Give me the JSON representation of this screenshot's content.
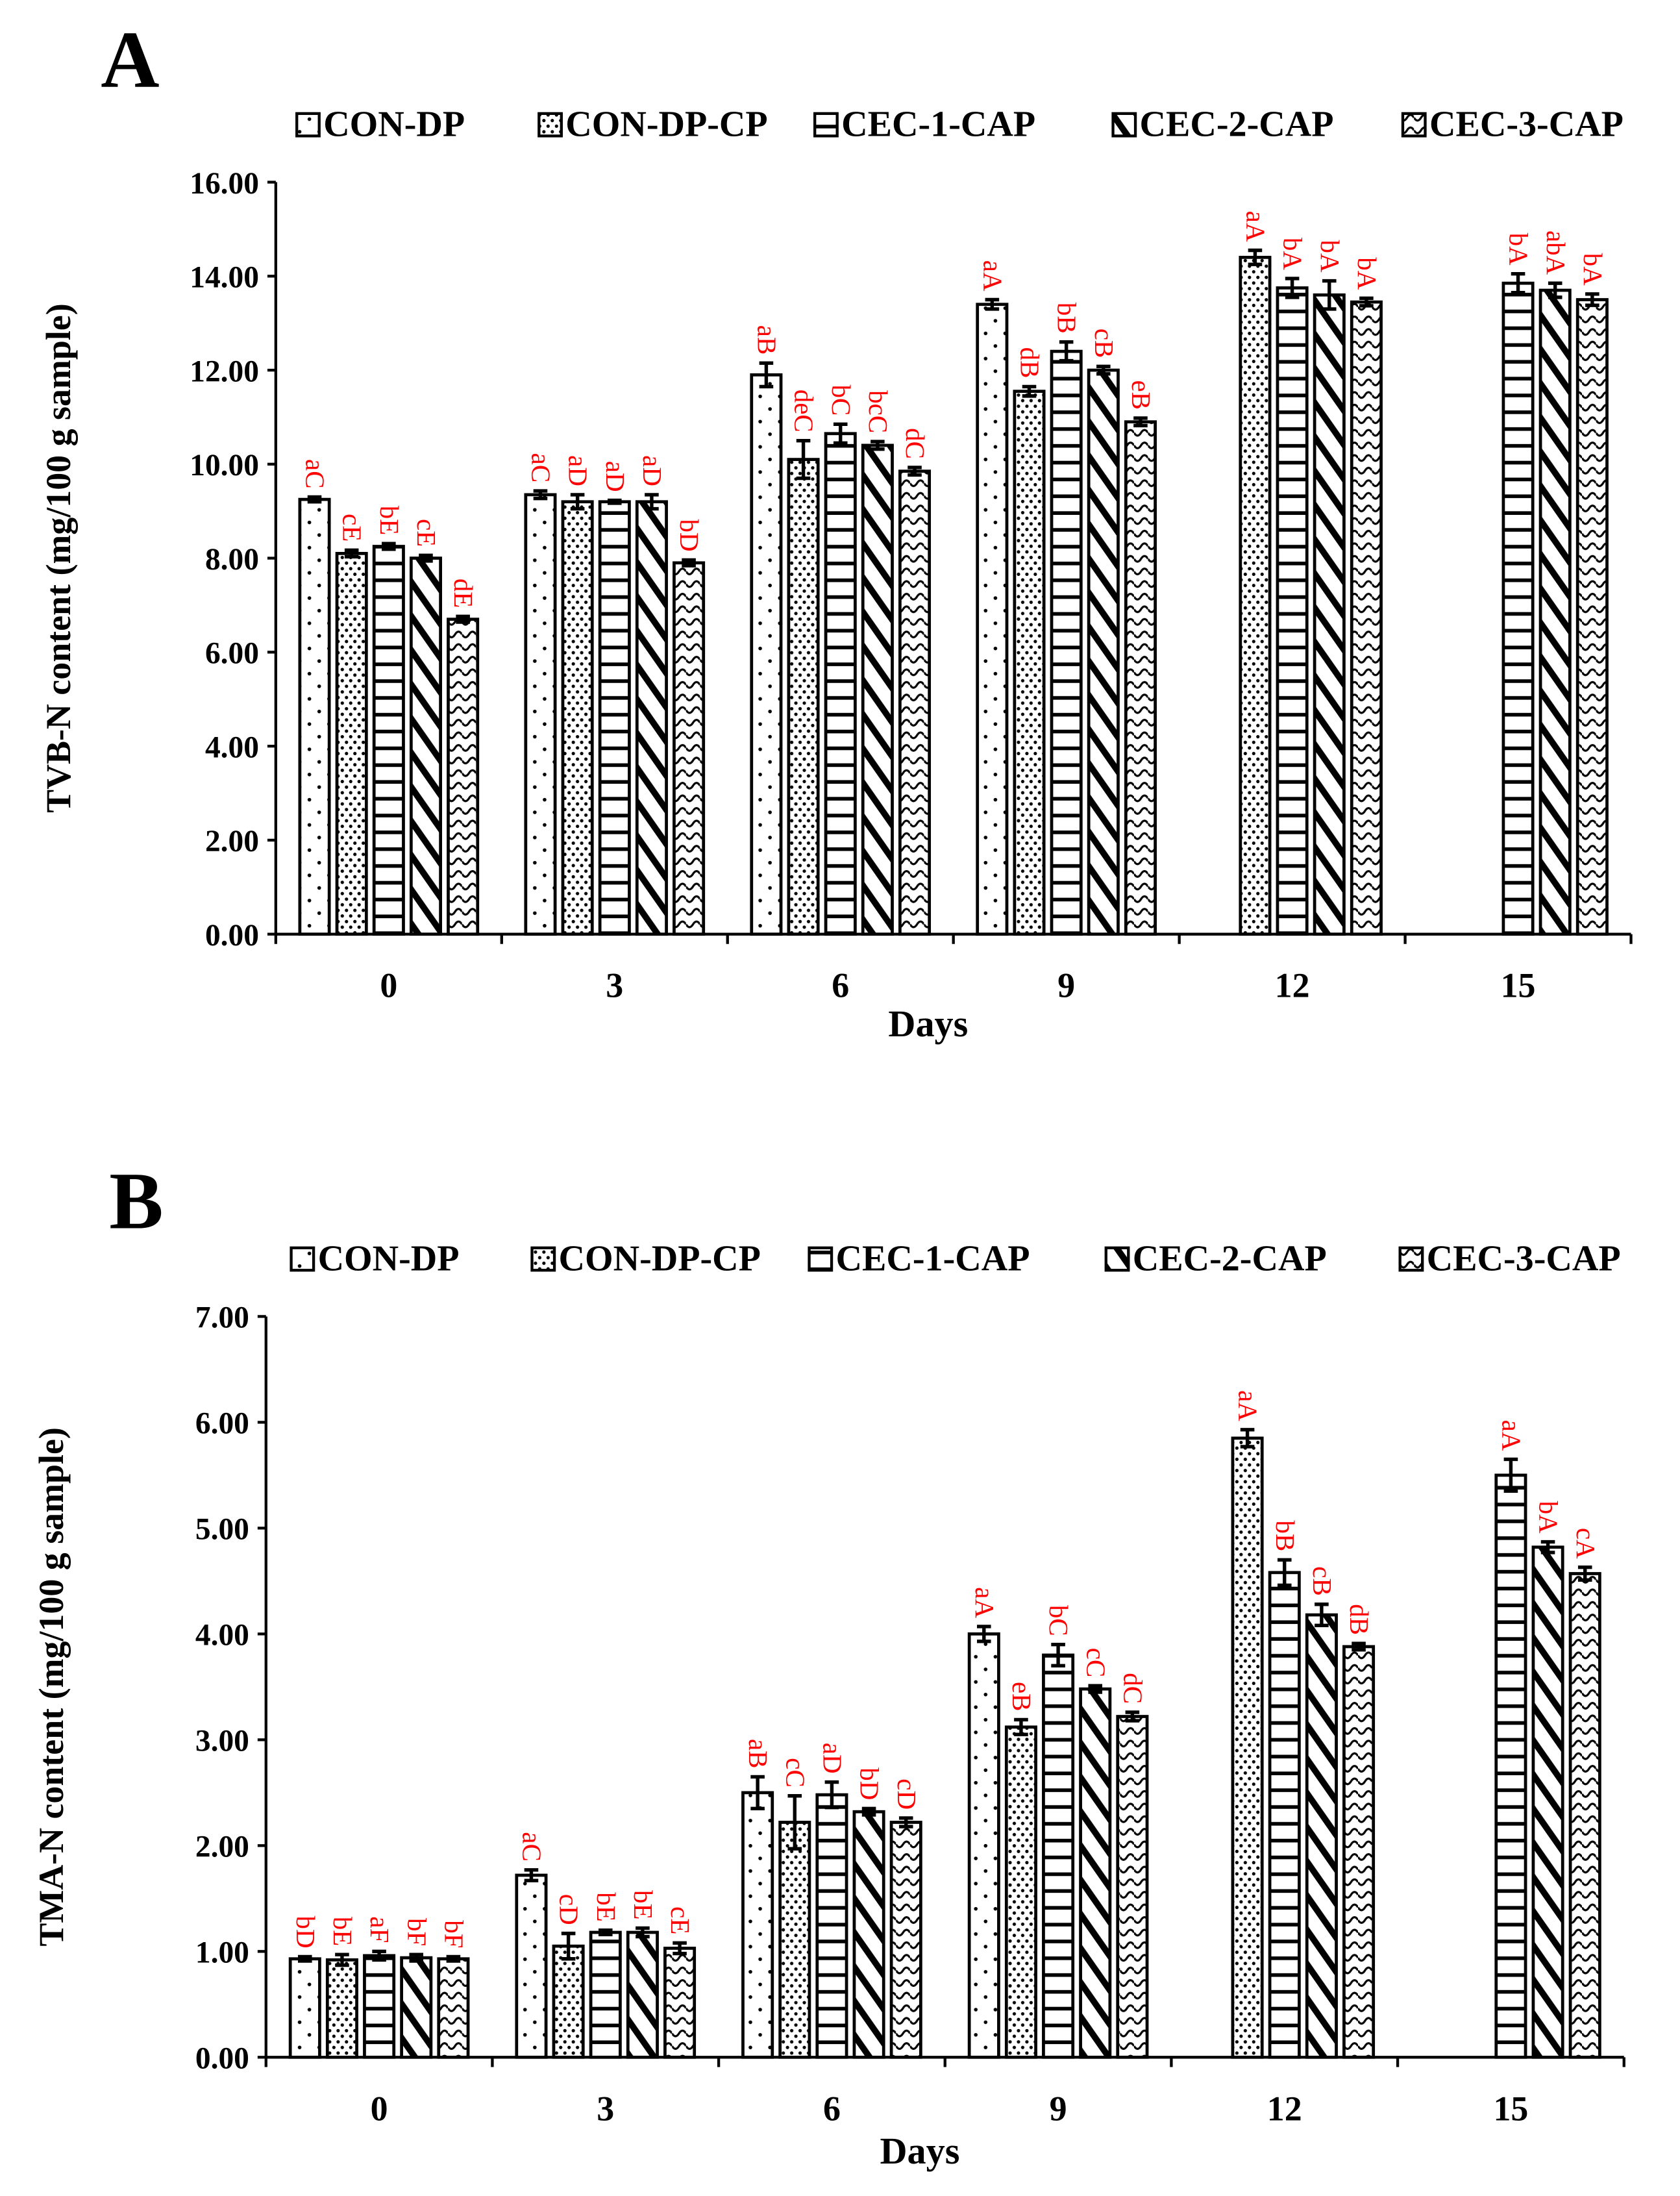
{
  "chart_data": [
    {
      "type": "bar",
      "panel": "A",
      "title": "",
      "xlabel": "Days",
      "ylabel": "TVB-N content (mg/100 g sample)",
      "ylim": [
        0,
        16
      ],
      "ytick_step": 2,
      "ytick_labels": [
        "0.00",
        "2.00",
        "4.00",
        "6.00",
        "8.00",
        "10.00",
        "12.00",
        "14.00",
        "16.00"
      ],
      "legend_position": "top",
      "categories": [
        "0",
        "3",
        "6",
        "9",
        "12",
        "15"
      ],
      "series": [
        {
          "name": "CON-DP",
          "values": [
            9.25,
            9.35,
            11.9,
            13.4,
            null,
            null
          ],
          "errors": [
            0.05,
            0.08,
            0.25,
            0.1,
            null,
            null
          ],
          "labels": [
            "aC",
            "aC",
            "aB",
            "aA",
            null,
            null
          ]
        },
        {
          "name": "CON-DP-CP",
          "values": [
            8.1,
            9.2,
            10.1,
            11.55,
            14.4,
            null
          ],
          "errors": [
            0.07,
            0.15,
            0.4,
            0.1,
            0.15,
            null
          ],
          "labels": [
            "cE",
            "aD",
            "deC",
            "dB",
            "aA",
            null
          ]
        },
        {
          "name": "CEC-1-CAP",
          "values": [
            8.25,
            9.2,
            10.65,
            12.4,
            13.75,
            13.85
          ],
          "errors": [
            0.06,
            0.03,
            0.2,
            0.2,
            0.2,
            0.2
          ],
          "labels": [
            "bE",
            "aD",
            "bC",
            "bB",
            "bA",
            "bA"
          ]
        },
        {
          "name": "CEC-2-CAP",
          "values": [
            8.0,
            9.2,
            10.4,
            12.0,
            13.6,
            13.7
          ],
          "errors": [
            0.06,
            0.15,
            0.08,
            0.08,
            0.3,
            0.15
          ],
          "labels": [
            "cE",
            "aD",
            "bcC",
            "cB",
            "bA",
            "abA"
          ]
        },
        {
          "name": "CEC-3-CAP",
          "values": [
            6.7,
            7.9,
            9.85,
            10.9,
            13.45,
            13.5
          ],
          "errors": [
            0.06,
            0.06,
            0.08,
            0.08,
            0.08,
            0.12
          ],
          "labels": [
            "dE",
            "bD",
            "dC",
            "eB",
            "bA",
            "bA"
          ]
        }
      ]
    },
    {
      "type": "bar",
      "panel": "B",
      "title": "",
      "xlabel": "Days",
      "ylabel": "TMA-N content (mg/100 g sample)",
      "ylim": [
        0,
        7
      ],
      "ytick_step": 1,
      "ytick_labels": [
        "0.00",
        "1.00",
        "2.00",
        "3.00",
        "4.00",
        "5.00",
        "6.00",
        "7.00"
      ],
      "legend_position": "top",
      "categories": [
        "0",
        "3",
        "6",
        "9",
        "12",
        "15"
      ],
      "series": [
        {
          "name": "CON-DP",
          "values": [
            0.93,
            1.72,
            2.5,
            4.0,
            null,
            null
          ],
          "errors": [
            0.02,
            0.05,
            0.15,
            0.07,
            null,
            null
          ],
          "labels": [
            "bD",
            "aC",
            "aB",
            "aA",
            null,
            null
          ]
        },
        {
          "name": "CON-DP-CP",
          "values": [
            0.92,
            1.05,
            2.22,
            3.12,
            5.85,
            null
          ],
          "errors": [
            0.05,
            0.12,
            0.25,
            0.07,
            0.08,
            null
          ],
          "labels": [
            "bE",
            "cD",
            "cC",
            "eB",
            "aA",
            null
          ]
        },
        {
          "name": "CEC-1-CAP",
          "values": [
            0.96,
            1.18,
            2.48,
            3.8,
            4.58,
            5.5
          ],
          "errors": [
            0.04,
            0.02,
            0.12,
            0.1,
            0.12,
            0.15
          ],
          "labels": [
            "aF",
            "bE",
            "aD",
            "bC",
            "bB",
            "aA"
          ]
        },
        {
          "name": "CEC-2-CAP",
          "values": [
            0.94,
            1.18,
            2.32,
            3.48,
            4.18,
            4.82
          ],
          "errors": [
            0.03,
            0.04,
            0.03,
            0.03,
            0.1,
            0.05
          ],
          "labels": [
            "bF",
            "bE",
            "bD",
            "cC",
            "cB",
            "bA"
          ]
        },
        {
          "name": "CEC-3-CAP",
          "values": [
            0.93,
            1.03,
            2.22,
            3.22,
            3.88,
            4.57
          ],
          "errors": [
            0.02,
            0.05,
            0.04,
            0.04,
            0.03,
            0.06
          ],
          "labels": [
            "bF",
            "cE",
            "cD",
            "dC",
            "dB",
            "cA"
          ]
        }
      ]
    }
  ],
  "colors": {
    "bars": "#000000",
    "significance_labels": "#ff0000"
  }
}
